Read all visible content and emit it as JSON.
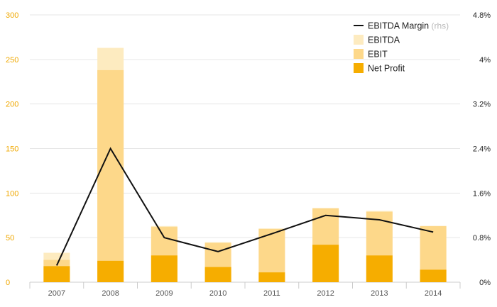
{
  "chart_data": {
    "type": "bar",
    "categories": [
      "2007",
      "2008",
      "2009",
      "2010",
      "2011",
      "2012",
      "2013",
      "2014"
    ],
    "series": [
      {
        "name": "EBITDA",
        "type": "bar",
        "axis": "left",
        "color": "#fdebc0",
        "values": [
          33,
          263,
          63,
          45,
          60,
          83,
          80,
          63
        ]
      },
      {
        "name": "EBIT",
        "type": "bar",
        "axis": "left",
        "color": "#fdd88a",
        "values": [
          25,
          238,
          62,
          44,
          60,
          83,
          79,
          63
        ]
      },
      {
        "name": "Net Profit",
        "type": "bar",
        "axis": "left",
        "color": "#f6ad00",
        "values": [
          18,
          24,
          30,
          17,
          11,
          42,
          30,
          14
        ]
      },
      {
        "name": "EBITDA Margin",
        "type": "line",
        "axis": "right",
        "color": "#111111",
        "values": [
          0.3,
          2.4,
          0.8,
          0.55,
          0.87,
          1.2,
          1.12,
          0.9
        ]
      }
    ],
    "y_left": {
      "lim": [
        0,
        300
      ],
      "ticks": [
        "0",
        "50",
        "100",
        "150",
        "200",
        "250",
        "300"
      ]
    },
    "y_right": {
      "lim": [
        0,
        4.8
      ],
      "ticks": [
        "0%",
        "0.8%",
        "1.6%",
        "2.4%",
        "3.2%",
        "4%",
        "4.8%"
      ]
    },
    "grid": true,
    "legend": {
      "position": "top-right",
      "items": [
        {
          "label": "EBITDA Margin",
          "suffix": "(rhs)",
          "marker": "line",
          "color": "#111111"
        },
        {
          "label": "EBITDA",
          "marker": "square",
          "color": "#fdebc0"
        },
        {
          "label": "EBIT",
          "marker": "square",
          "color": "#fdd88a"
        },
        {
          "label": "Net Profit",
          "marker": "square",
          "color": "#f6ad00"
        }
      ]
    },
    "colors": {
      "left_axis": "#f0a800",
      "grid": "#e6e6e6"
    }
  }
}
